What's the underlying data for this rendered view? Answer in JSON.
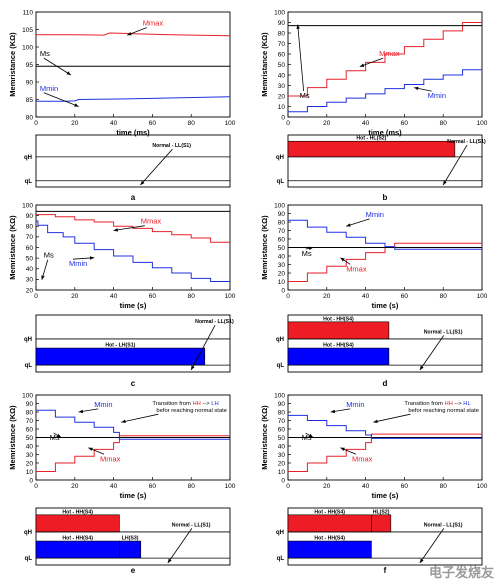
{
  "chart_data": [
    {
      "panel": "a",
      "type": "line",
      "ylabel": "Memristance (KΩ)",
      "xlabel": "time (ms)",
      "xlim": [
        0,
        100
      ],
      "ylim": [
        80,
        110
      ],
      "xticks": [
        0,
        20,
        40,
        60,
        80,
        100
      ],
      "yticks": [
        80,
        85,
        90,
        95,
        100,
        105,
        110
      ],
      "series": [
        {
          "name": "Mmax",
          "color": "#e8202a",
          "x": [
            0,
            20,
            35,
            38,
            50,
            70,
            100
          ],
          "y": [
            103.5,
            103.5,
            103.4,
            104,
            103.8,
            103.5,
            103.2
          ]
        },
        {
          "name": "Ms",
          "color": "#000000",
          "x": [
            0,
            100
          ],
          "y": [
            94.5,
            94.5
          ]
        },
        {
          "name": "Mmin",
          "color": "#2030e0",
          "x": [
            0,
            15,
            20,
            22,
            50,
            75,
            100
          ],
          "y": [
            84.5,
            84.5,
            84.6,
            85,
            85.2,
            85.5,
            85.8
          ]
        }
      ],
      "annotations": [
        "Mmax",
        "Ms",
        "Mmin"
      ],
      "state": {
        "labels": [
          "qH",
          "qL"
        ],
        "bars": [],
        "notes": [
          "Normal - LL(S1)"
        ]
      }
    },
    {
      "panel": "b",
      "type": "line",
      "ylabel": "Memristance (KΩ)",
      "xlabel": "time (ms)",
      "xlim": [
        0,
        100
      ],
      "ylim": [
        0,
        100
      ],
      "xticks": [
        0,
        20,
        40,
        60,
        80,
        100
      ],
      "yticks": [
        0,
        10,
        20,
        30,
        40,
        50,
        60,
        70,
        80,
        90,
        100
      ],
      "series": [
        {
          "name": "Mmax",
          "color": "#e8202a",
          "x": [
            0,
            10,
            10,
            20,
            20,
            30,
            30,
            40,
            40,
            50,
            50,
            60,
            60,
            70,
            70,
            80,
            80,
            90,
            90,
            100
          ],
          "y": [
            20,
            20,
            28,
            28,
            36,
            36,
            44,
            44,
            52,
            52,
            60,
            60,
            67,
            67,
            74,
            74,
            82,
            82,
            90,
            90
          ]
        },
        {
          "name": "Ms",
          "color": "#000000",
          "x": [
            0,
            100
          ],
          "y": [
            87,
            87
          ]
        },
        {
          "name": "Mmin",
          "color": "#2030e0",
          "x": [
            0,
            10,
            10,
            20,
            20,
            30,
            30,
            40,
            40,
            50,
            50,
            60,
            60,
            70,
            70,
            80,
            80,
            90,
            90,
            100
          ],
          "y": [
            5,
            5,
            10,
            10,
            14,
            14,
            18,
            18,
            22,
            22,
            27,
            27,
            31,
            31,
            36,
            36,
            40,
            40,
            45,
            45
          ]
        }
      ],
      "annotations": [
        "Mmax",
        "Ms",
        "Mmin"
      ],
      "state": {
        "labels": [
          "qH",
          "qL"
        ],
        "bars": [
          {
            "label": "Hot - HL(S2)",
            "color": "#ee1c24",
            "row": "qH",
            "x0": 0,
            "x1": 86
          }
        ],
        "notes": [
          "Normal - LL(S1)"
        ]
      }
    },
    {
      "panel": "c",
      "type": "line",
      "ylabel": "Memristance (KΩ)",
      "xlabel": "time (s)",
      "xlim": [
        0,
        100
      ],
      "ylim": [
        20,
        100
      ],
      "xticks": [
        0,
        20,
        40,
        60,
        80,
        100
      ],
      "yticks": [
        20,
        30,
        40,
        50,
        60,
        70,
        80,
        90,
        100
      ],
      "series": [
        {
          "name": "Mmax",
          "color": "#e8202a",
          "x": [
            0,
            10,
            10,
            20,
            20,
            30,
            30,
            40,
            40,
            50,
            50,
            60,
            60,
            70,
            70,
            80,
            80,
            90,
            90,
            100
          ],
          "y": [
            91,
            91,
            89,
            89,
            86,
            86,
            84,
            84,
            80,
            80,
            78,
            78,
            75,
            75,
            72,
            72,
            69,
            69,
            65,
            65
          ]
        },
        {
          "name": "Ms",
          "color": "#000000",
          "x": [
            0,
            100
          ],
          "y": [
            94,
            94
          ]
        },
        {
          "name": "Mmin",
          "color": "#2030e0",
          "x": [
            0,
            1,
            1,
            6,
            6,
            14,
            14,
            20,
            20,
            30,
            30,
            40,
            40,
            50,
            50,
            60,
            60,
            70,
            70,
            80,
            80,
            90,
            90,
            100
          ],
          "y": [
            85,
            85,
            81,
            81,
            74,
            74,
            70,
            70,
            64,
            64,
            58,
            58,
            52,
            52,
            46,
            46,
            41,
            41,
            36,
            36,
            31,
            31,
            28,
            28
          ]
        }
      ],
      "annotations": [
        "Mmax",
        "Ms",
        "Mmin"
      ],
      "state": {
        "labels": [
          "qH",
          "qL"
        ],
        "bars": [
          {
            "label": "Hot - LH(S1)",
            "color": "#0000ff",
            "row": "qL",
            "x0": 0,
            "x1": 87
          }
        ],
        "notes": [
          "Normal - LL(S1)"
        ]
      }
    },
    {
      "panel": "d",
      "type": "line",
      "ylabel": "Memristance (KΩ)",
      "xlabel": "time (s)",
      "xlim": [
        0,
        100
      ],
      "ylim": [
        0,
        100
      ],
      "xticks": [
        0,
        20,
        40,
        60,
        80,
        100
      ],
      "yticks": [
        0,
        10,
        20,
        30,
        40,
        50,
        60,
        70,
        80,
        90,
        100
      ],
      "series": [
        {
          "name": "Mmax",
          "color": "#e8202a",
          "x": [
            0,
            10,
            10,
            20,
            20,
            30,
            30,
            40,
            40,
            50,
            50,
            55,
            55,
            100
          ],
          "y": [
            10,
            10,
            20,
            20,
            28,
            28,
            36,
            36,
            44,
            44,
            50,
            50,
            55,
            55
          ]
        },
        {
          "name": "Ms",
          "color": "#000000",
          "x": [
            0,
            100
          ],
          "y": [
            50,
            50
          ]
        },
        {
          "name": "Mmin",
          "color": "#2030e0",
          "x": [
            0,
            10,
            10,
            20,
            20,
            30,
            30,
            40,
            40,
            50,
            50,
            55,
            55,
            100
          ],
          "y": [
            82,
            82,
            74,
            74,
            68,
            68,
            62,
            62,
            55,
            55,
            51,
            51,
            48,
            48
          ]
        }
      ],
      "annotations": [
        "Mmax",
        "Ms",
        "Mmin"
      ],
      "state": {
        "labels": [
          "qH",
          "qL"
        ],
        "bars": [
          {
            "label": "Hot - HH(S4)",
            "color": "#ee1c24",
            "row": "qH",
            "x0": 0,
            "x1": 52
          },
          {
            "label": "Hot - HH(S4)",
            "color": "#0000ff",
            "row": "qL",
            "x0": 0,
            "x1": 52
          }
        ],
        "notes": [
          "Normal - LL(S1)"
        ]
      }
    },
    {
      "panel": "e",
      "type": "line",
      "ylabel": "Memristance (KΩ)",
      "xlabel": "time (s)",
      "xlim": [
        0,
        100
      ],
      "ylim": [
        0,
        100
      ],
      "xticks": [
        0,
        20,
        40,
        60,
        80,
        100
      ],
      "yticks": [
        0,
        10,
        20,
        30,
        40,
        50,
        60,
        70,
        80,
        90,
        100
      ],
      "series": [
        {
          "name": "Mmax",
          "color": "#e8202a",
          "x": [
            0,
            10,
            10,
            20,
            20,
            30,
            30,
            40,
            40,
            43,
            43,
            100
          ],
          "y": [
            10,
            10,
            20,
            20,
            28,
            28,
            36,
            36,
            44,
            44,
            52,
            52
          ]
        },
        {
          "name": "Ms",
          "color": "#000000",
          "x": [
            0,
            100
          ],
          "y": [
            50,
            50
          ]
        },
        {
          "name": "Mmin",
          "color": "#2030e0",
          "x": [
            0,
            10,
            10,
            20,
            20,
            30,
            30,
            40,
            40,
            43,
            43,
            100
          ],
          "y": [
            82,
            82,
            74,
            74,
            68,
            68,
            62,
            62,
            56,
            56,
            48,
            48
          ]
        }
      ],
      "annotations": [
        "Mmax",
        "Ms",
        "Mmin"
      ],
      "transition_note": {
        "prefix": "Transition from ",
        "from": "HH",
        "arrow": " --> ",
        "to": "LH",
        "line2": "befor reaching normal state"
      },
      "state": {
        "labels": [
          "qH",
          "qL"
        ],
        "bars": [
          {
            "label": "Hot - HH(S4)",
            "color": "#ee1c24",
            "row": "qH",
            "x0": 0,
            "x1": 43
          },
          {
            "label": "Hot - HH(S4)",
            "color": "#0000ff",
            "row": "qL",
            "x0": 0,
            "x1": 43
          },
          {
            "label": "LH(S3)",
            "color": "#0000ff",
            "row": "qL",
            "x0": 43,
            "x1": 54
          }
        ],
        "notes": [
          "Normal - LL(S1)"
        ]
      }
    },
    {
      "panel": "f",
      "type": "line",
      "ylabel": "Memristance (KΩ)",
      "xlabel": "time (s)",
      "xlim": [
        0,
        100
      ],
      "ylim": [
        0,
        100
      ],
      "xticks": [
        0,
        20,
        40,
        60,
        80,
        100
      ],
      "yticks": [
        0,
        10,
        20,
        30,
        40,
        50,
        60,
        70,
        80,
        90,
        100
      ],
      "series": [
        {
          "name": "Mmax",
          "color": "#e8202a",
          "x": [
            0,
            10,
            10,
            20,
            20,
            30,
            30,
            40,
            40,
            43,
            43,
            100
          ],
          "y": [
            10,
            10,
            20,
            20,
            28,
            28,
            36,
            36,
            44,
            44,
            54,
            54
          ]
        },
        {
          "name": "Ms",
          "color": "#000000",
          "x": [
            0,
            100
          ],
          "y": [
            50,
            50
          ]
        },
        {
          "name": "Mmin",
          "color": "#2030e0",
          "x": [
            0,
            10,
            10,
            20,
            20,
            30,
            30,
            40,
            40,
            43,
            43,
            100
          ],
          "y": [
            76,
            76,
            70,
            70,
            64,
            64,
            58,
            58,
            53,
            53,
            49,
            49
          ]
        }
      ],
      "annotations": [
        "Mmax",
        "Ms",
        "Mmin"
      ],
      "transition_note": {
        "prefix": "Transition from ",
        "from": "HH",
        "arrow": " --> ",
        "to": "HL",
        "line2": "befor reaching normal state"
      },
      "state": {
        "labels": [
          "qH",
          "qL"
        ],
        "bars": [
          {
            "label": "Hot - HH(S4)",
            "color": "#ee1c24",
            "row": "qH",
            "x0": 0,
            "x1": 43
          },
          {
            "label": "HL(S2)",
            "color": "#ee1c24",
            "row": "qH",
            "x0": 43,
            "x1": 53
          },
          {
            "label": "Hot - HH(S4)",
            "color": "#0000ff",
            "row": "qL",
            "x0": 0,
            "x1": 43
          }
        ],
        "notes": [
          "Normal - LL(S1)"
        ]
      }
    }
  ],
  "panel_labels": [
    "a",
    "b",
    "c",
    "d",
    "e",
    "f"
  ],
  "watermark": "电子发烧友"
}
